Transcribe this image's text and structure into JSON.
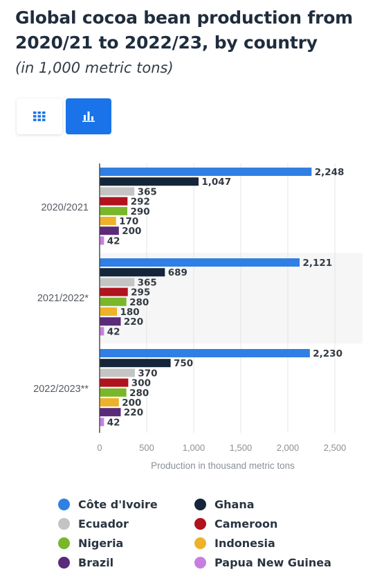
{
  "header": {
    "title": "Global cocoa bean production from 2020/21 to 2022/23, by country",
    "subtitle": "(in 1,000 metric tons)"
  },
  "view_toggle": {
    "options": [
      {
        "name": "table",
        "icon": "grid-icon",
        "active": false
      },
      {
        "name": "chart",
        "icon": "bar-chart-icon",
        "active": true
      }
    ],
    "accent_color": "#1a73e8"
  },
  "chart_data": {
    "type": "bar",
    "orientation": "horizontal",
    "categories": [
      "2020/2021",
      "2021/2022*",
      "2022/2023**"
    ],
    "xlabel": "Production in thousand metric tons",
    "ylabel": "",
    "xlim": [
      0,
      2500
    ],
    "xticks": [
      0,
      500,
      1000,
      1500,
      2000,
      2500
    ],
    "xtick_labels": [
      "0",
      "500",
      "1,000",
      "1,500",
      "2,000",
      "2,500"
    ],
    "grid": true,
    "legend_position": "bottom",
    "series": [
      {
        "name": "Côte d'Ivoire",
        "color": "#2f7fe4",
        "values": [
          2248,
          2121,
          2230
        ],
        "labels": [
          "2,248",
          "2,121",
          "2,230"
        ]
      },
      {
        "name": "Ghana",
        "color": "#15253a",
        "values": [
          1047,
          689,
          750
        ],
        "labels": [
          "1,047",
          "689",
          "750"
        ]
      },
      {
        "name": "Ecuador",
        "color": "#c4c4c4",
        "values": [
          365,
          365,
          370
        ],
        "labels": [
          "365",
          "365",
          "370"
        ]
      },
      {
        "name": "Cameroon",
        "color": "#b0121e",
        "values": [
          292,
          295,
          300
        ],
        "labels": [
          "292",
          "295",
          "300"
        ]
      },
      {
        "name": "Nigeria",
        "color": "#7ab62a",
        "values": [
          290,
          280,
          280
        ],
        "labels": [
          "290",
          "280",
          "280"
        ]
      },
      {
        "name": "Indonesia",
        "color": "#eeb22a",
        "values": [
          170,
          180,
          200
        ],
        "labels": [
          "170",
          "180",
          "200"
        ]
      },
      {
        "name": "Brazil",
        "color": "#5b2a78",
        "values": [
          200,
          220,
          220
        ],
        "labels": [
          "200",
          "220",
          "220"
        ]
      },
      {
        "name": "Papua New Guinea",
        "color": "#c67fe0",
        "values": [
          42,
          42,
          42
        ],
        "labels": [
          "42",
          "42",
          "42"
        ]
      }
    ]
  }
}
